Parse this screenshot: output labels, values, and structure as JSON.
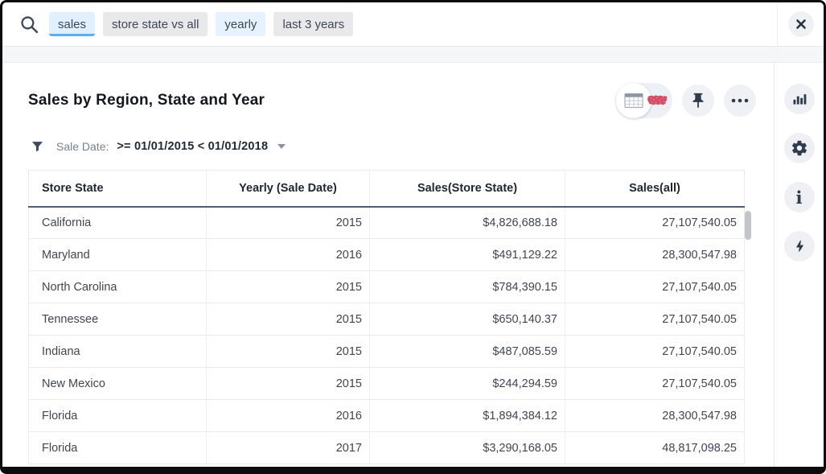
{
  "search_bar": {
    "tokens": [
      {
        "label": "sales",
        "state": "active"
      },
      {
        "label": "store state vs all",
        "state": "normal"
      },
      {
        "label": "yearly",
        "state": "highlight"
      },
      {
        "label": "last 3 years",
        "state": "normal"
      }
    ]
  },
  "answer": {
    "title": "Sales by Region, State and Year",
    "filter": {
      "label": "Sale Date:",
      "value": ">= 01/01/2015 < 01/01/2018"
    },
    "view_toggle": {
      "selected": "table",
      "options": [
        "table",
        "map"
      ]
    }
  },
  "table": {
    "columns": [
      {
        "label": "Store State",
        "align": "left"
      },
      {
        "label": "Yearly (Sale Date)",
        "align": "center"
      },
      {
        "label": "Sales(Store State)",
        "align": "center"
      },
      {
        "label": "Sales(all)",
        "align": "center"
      }
    ],
    "rows": [
      [
        "California",
        "2015",
        "$4,826,688.18",
        "27,107,540.05"
      ],
      [
        "Maryland",
        "2016",
        "$491,129.22",
        "28,300,547.98"
      ],
      [
        "North Carolina",
        "2015",
        "$784,390.15",
        "27,107,540.05"
      ],
      [
        "Tennessee",
        "2015",
        "$650,140.37",
        "27,107,540.05"
      ],
      [
        "Indiana",
        "2015",
        "$487,085.59",
        "27,107,540.05"
      ],
      [
        "New Mexico",
        "2015",
        "$244,294.59",
        "27,107,540.05"
      ],
      [
        "Florida",
        "2016",
        "$1,894,384.12",
        "28,300,547.98"
      ],
      [
        "Florida",
        "2017",
        "$3,290,168.05",
        "48,817,098.25"
      ]
    ]
  },
  "icons": {
    "search-icon": "magnifying-glass",
    "close-icon": "x-cross",
    "filter-icon": "funnel",
    "caret-down-icon": "triangle-down",
    "table-view-icon": "grid-table",
    "map-view-icon": "usa-map-red",
    "pin-icon": "pushpin",
    "more-icon": "ellipsis-dots",
    "chart-icon": "bar-chart",
    "settings-icon": "gear",
    "info-icon": "letter-i-serif",
    "actions-icon": "lightning-bolt"
  },
  "colors": {
    "token_active_bg": "#e1f0fe",
    "token_active_underline": "#57aef6",
    "token_highlight_bg": "#e6f2fe",
    "token_gray_bg": "#e9e9ec",
    "map_icon_red": "#d44f66",
    "header_bottom_border": "#515d6c",
    "icon_dark": "#2e3a4d",
    "button_circle_bg": "#f0f1f4",
    "strip_bg": "#f4f6f8"
  }
}
